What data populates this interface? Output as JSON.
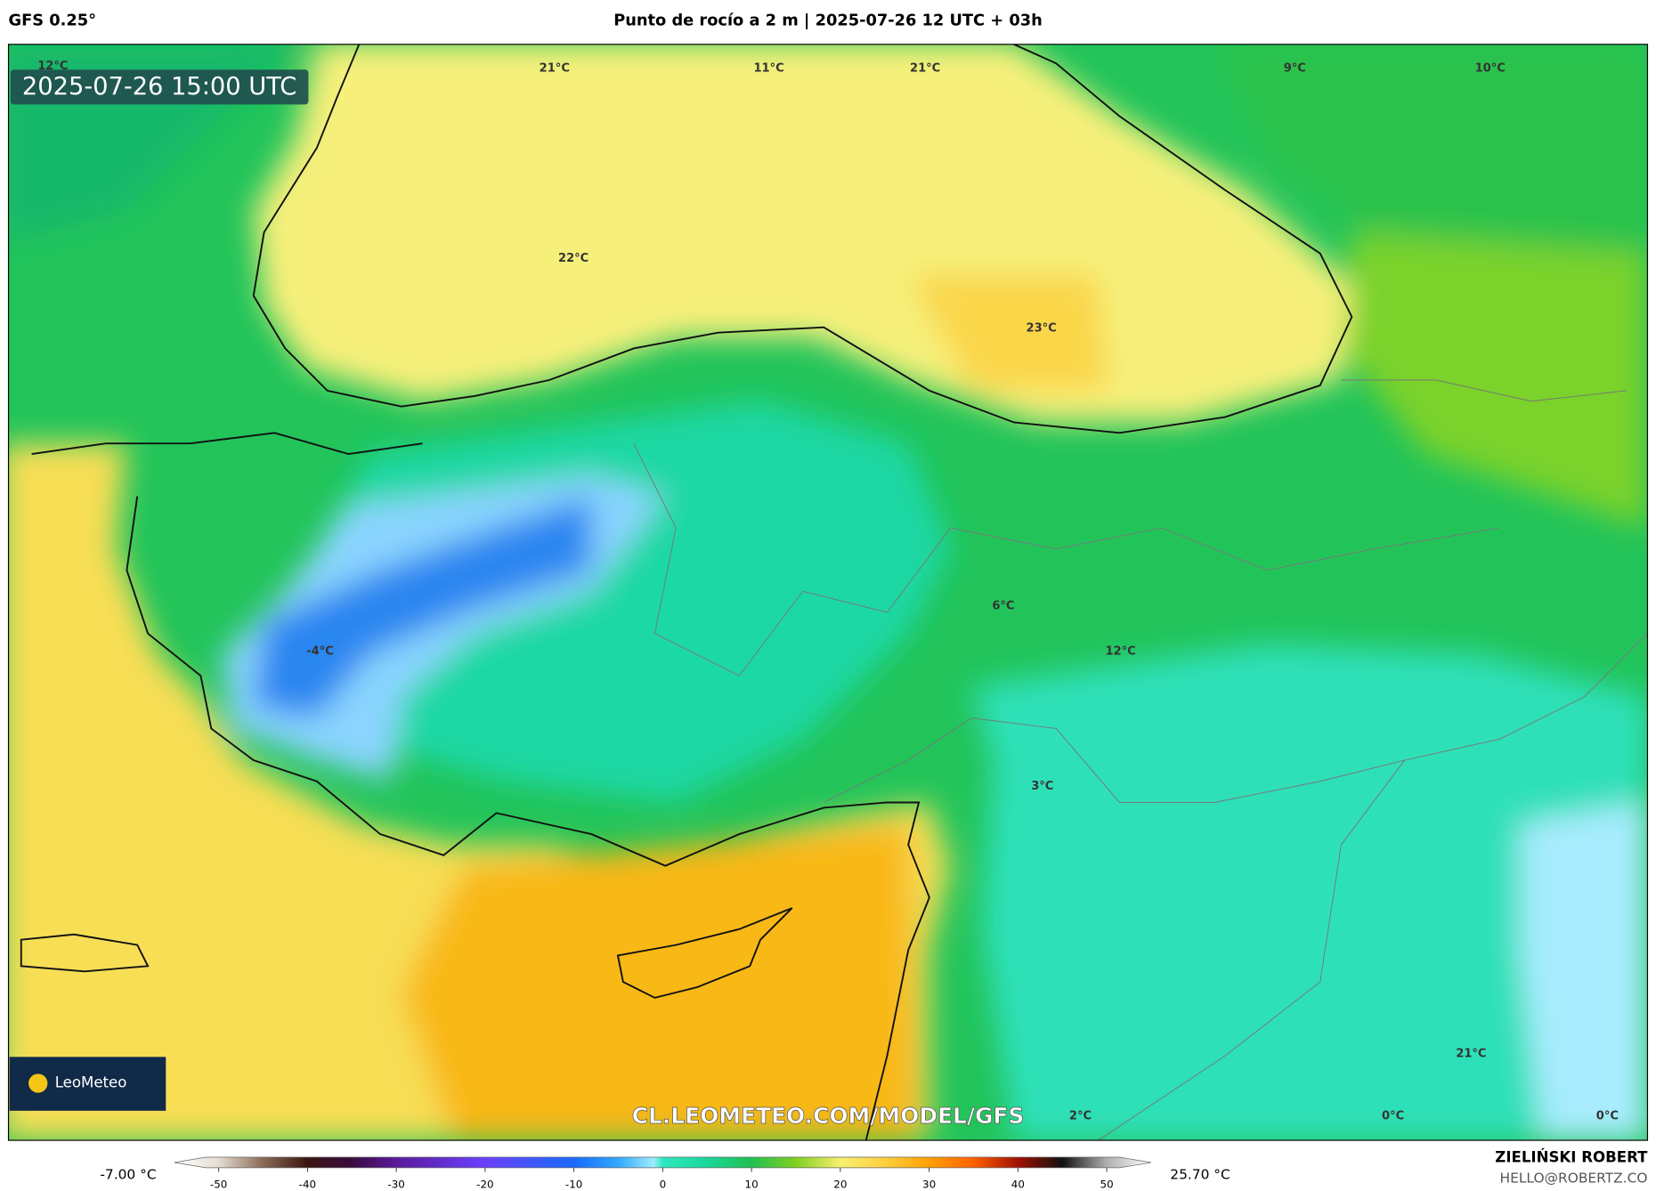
{
  "header": {
    "model": "GFS 0.25°",
    "title": "Punto de rocío a 2 m | 2025-07-26 12 UTC + 03h"
  },
  "map": {
    "timestamp": "2025-07-26 15:00 UTC",
    "labels": [
      "12°C",
      "21°C",
      "11°C",
      "21°C",
      "9°C",
      "10°C",
      "22°C",
      "23°C",
      "6°C",
      "12°C",
      "-4°C",
      "3°C",
      "2°C",
      "0°C",
      "0°C",
      "21°C"
    ],
    "watermark": "CL.LEOMETEO.COM/MODEL/GFS",
    "logo": "LeoMeteo"
  },
  "colorbar": {
    "min_label": "-7.00 °C",
    "max_label": "25.70 °C",
    "lim": [
      -55,
      55
    ],
    "ticks": [
      -50,
      -40,
      -30,
      -20,
      -10,
      0,
      10,
      20,
      30,
      40,
      50
    ],
    "stops": [
      [
        -55,
        "#ffffff"
      ],
      [
        -50,
        "#e6ddd2"
      ],
      [
        -45,
        "#8a6a55"
      ],
      [
        -40,
        "#3a1510"
      ],
      [
        -35,
        "#3a0a40"
      ],
      [
        -30,
        "#5a1a9a"
      ],
      [
        -20,
        "#6a40ff"
      ],
      [
        -10,
        "#1a6aff"
      ],
      [
        -5,
        "#30a8ff"
      ],
      [
        -1,
        "#a0ecff"
      ],
      [
        0,
        "#30e8c0"
      ],
      [
        5,
        "#18d89a"
      ],
      [
        10,
        "#20c050"
      ],
      [
        15,
        "#80d020"
      ],
      [
        20,
        "#f8f070"
      ],
      [
        25,
        "#ffd040"
      ],
      [
        30,
        "#ffa000"
      ],
      [
        35,
        "#ff6000"
      ],
      [
        40,
        "#a01000"
      ],
      [
        45,
        "#101010"
      ],
      [
        50,
        "#b0b0b0"
      ],
      [
        55,
        "#ffffff"
      ]
    ]
  },
  "footer": {
    "author": "ZIELIŃSKI ROBERT",
    "email": "HELLO@ROBERTZ.CO"
  }
}
